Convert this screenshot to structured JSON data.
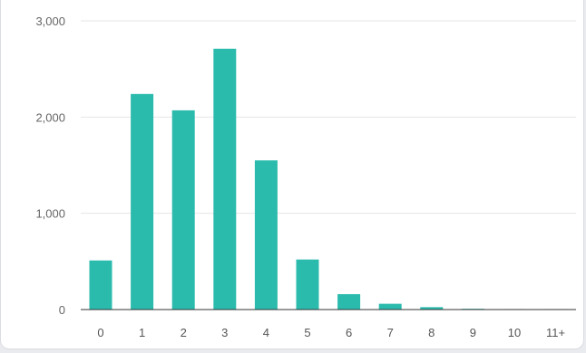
{
  "chart_data": {
    "type": "bar",
    "categories": [
      "0",
      "1",
      "2",
      "3",
      "4",
      "5",
      "6",
      "7",
      "8",
      "9",
      "10",
      "11+"
    ],
    "values": [
      510,
      2240,
      2070,
      2710,
      1550,
      520,
      160,
      60,
      25,
      8,
      5,
      5
    ],
    "ylim": [
      0,
      3000
    ],
    "yticks": [
      0,
      1000,
      2000,
      3000
    ],
    "ytick_labels": [
      "0",
      "1,000",
      "2,000",
      "3,000"
    ],
    "title": "",
    "xlabel": "",
    "ylabel": "",
    "grid": true,
    "legend": "none",
    "colors": {
      "bar": "#2bbbad",
      "grid": "#e6e6e6",
      "axis": "#333333"
    }
  }
}
